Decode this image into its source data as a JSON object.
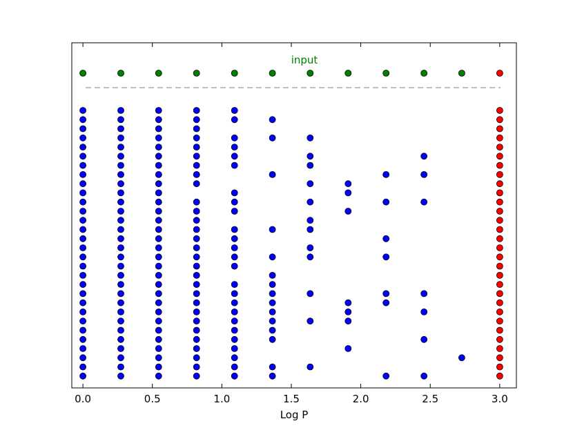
{
  "chart_data": {
    "type": "scatter",
    "title": "",
    "xlabel": "Log P",
    "ylabel": "",
    "xlim": [
      -0.08,
      3.12
    ],
    "x_ticks": [
      0.0,
      0.5,
      1.0,
      1.5,
      2.0,
      2.5,
      3.0
    ],
    "x_tick_labels": [
      "0.0",
      "0.5",
      "1.0",
      "1.5",
      "2.0",
      "2.5",
      "3.0"
    ],
    "grid": false,
    "y_ticks": false,
    "input_row": {
      "label": "input",
      "label_color": "#008000",
      "x": [
        0.0,
        0.273,
        0.545,
        0.818,
        1.091,
        1.364,
        1.636,
        1.909,
        2.182,
        2.455,
        2.727,
        3.0
      ],
      "colors": [
        "#008000",
        "#008000",
        "#008000",
        "#008000",
        "#008000",
        "#008000",
        "#008000",
        "#008000",
        "#008000",
        "#008000",
        "#008000",
        "#ff0000"
      ]
    },
    "separator": {
      "style": "dashed",
      "color": "#aaaaaa"
    },
    "rows": 30,
    "point_colors": {
      "output": "#0000ff",
      "final": "#ff0000",
      "edge": "#000000"
    },
    "columns": [
      {
        "x": 0.0,
        "color": "#0000ff",
        "rows": [
          0,
          1,
          2,
          3,
          4,
          5,
          6,
          7,
          8,
          9,
          10,
          11,
          12,
          13,
          14,
          15,
          16,
          17,
          18,
          19,
          20,
          21,
          22,
          23,
          24,
          25,
          26,
          27,
          28,
          29
        ]
      },
      {
        "x": 0.273,
        "color": "#0000ff",
        "rows": [
          0,
          1,
          2,
          3,
          4,
          5,
          6,
          7,
          8,
          9,
          10,
          11,
          12,
          13,
          14,
          15,
          16,
          17,
          18,
          19,
          20,
          21,
          22,
          23,
          24,
          25,
          26,
          27,
          28,
          29
        ]
      },
      {
        "x": 0.545,
        "color": "#0000ff",
        "rows": [
          0,
          1,
          2,
          3,
          4,
          5,
          6,
          7,
          8,
          9,
          10,
          11,
          12,
          13,
          14,
          15,
          16,
          17,
          18,
          19,
          20,
          21,
          22,
          23,
          24,
          25,
          26,
          27,
          28,
          29
        ]
      },
      {
        "x": 0.818,
        "color": "#0000ff",
        "rows": [
          0,
          1,
          2,
          3,
          4,
          5,
          6,
          7,
          8,
          10,
          11,
          12,
          13,
          14,
          15,
          16,
          17,
          18,
          19,
          20,
          21,
          22,
          23,
          24,
          25,
          26,
          27,
          28,
          29
        ]
      },
      {
        "x": 1.091,
        "color": "#0000ff",
        "rows": [
          0,
          1,
          3,
          4,
          5,
          6,
          9,
          10,
          11,
          13,
          14,
          15,
          16,
          17,
          19,
          20,
          21,
          22,
          23,
          24,
          25,
          26,
          27,
          28,
          29
        ]
      },
      {
        "x": 1.364,
        "color": "#0000ff",
        "rows": [
          1,
          3,
          7,
          13,
          16,
          18,
          19,
          20,
          21,
          22,
          23,
          24,
          25,
          28,
          29
        ]
      },
      {
        "x": 1.636,
        "color": "#0000ff",
        "rows": [
          3,
          5,
          6,
          8,
          10,
          12,
          13,
          15,
          16,
          20,
          23,
          28
        ]
      },
      {
        "x": 1.909,
        "color": "#0000ff",
        "rows": [
          8,
          9,
          11,
          21,
          22,
          23,
          26
        ]
      },
      {
        "x": 2.182,
        "color": "#0000ff",
        "rows": [
          7,
          10,
          14,
          16,
          20,
          21,
          29
        ]
      },
      {
        "x": 2.455,
        "color": "#0000ff",
        "rows": [
          5,
          7,
          10,
          20,
          22,
          25,
          29
        ]
      },
      {
        "x": 2.727,
        "color": "#0000ff",
        "rows": [
          27
        ]
      },
      {
        "x": 3.0,
        "color": "#ff0000",
        "rows": [
          0,
          1,
          2,
          3,
          4,
          5,
          6,
          7,
          8,
          9,
          10,
          11,
          12,
          13,
          14,
          15,
          16,
          17,
          18,
          19,
          20,
          21,
          22,
          23,
          24,
          25,
          26,
          27,
          28,
          29
        ]
      }
    ]
  }
}
